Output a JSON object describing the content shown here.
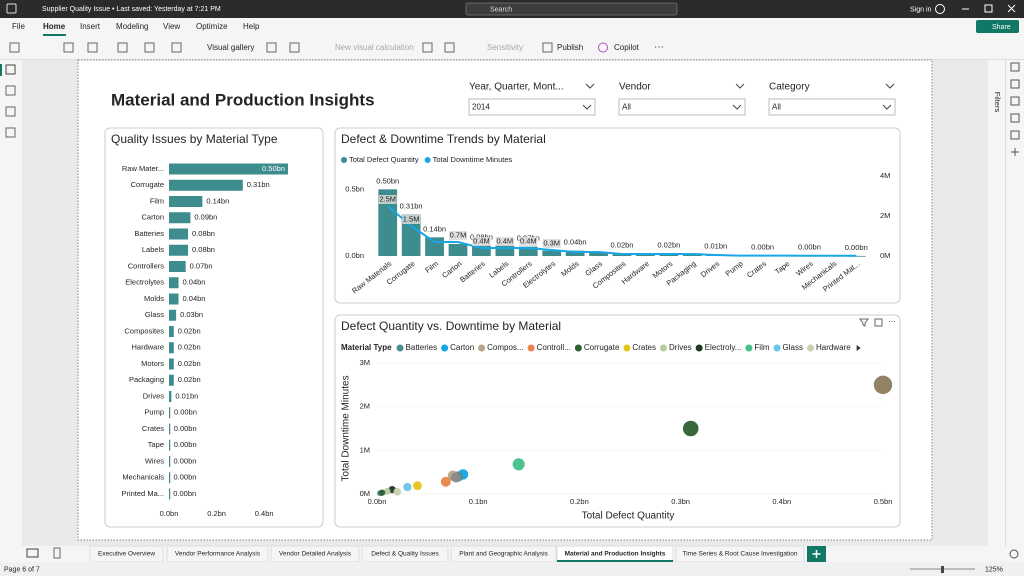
{
  "titlebar": {
    "document": "Supplier Quality Issue • Last saved: Yesterday at 7:21 PM",
    "search": "Search",
    "sign_in": "Sign in"
  },
  "menu": [
    "File",
    "Home",
    "Insert",
    "Modeling",
    "View",
    "Optimize",
    "Help"
  ],
  "active_menu": 1,
  "share": "Share",
  "ribbon": {
    "visual_gallery": "Visual gallery",
    "new_visual_calculation": "New visual calculation",
    "sensitivity": "Sensitivity",
    "publish": "Publish",
    "copilot": "Copilot"
  },
  "filters_pane": "Filters",
  "report_title": "Material and Production Insights",
  "slicers": [
    {
      "label": "Year, Quarter, Mont...",
      "value": "2014"
    },
    {
      "label": "Vendor",
      "value": "All"
    },
    {
      "label": "Category",
      "value": "All"
    }
  ],
  "chart_data": [
    {
      "type": "hbar",
      "title": "Quality Issues by Material Type",
      "categories": [
        "Raw Mater...",
        "Corrugate",
        "Film",
        "Carton",
        "Batteries",
        "Labels",
        "Controllers",
        "Electrolytes",
        "Molds",
        "Glass",
        "Composites",
        "Hardware",
        "Motors",
        "Packaging",
        "Drives",
        "Pump",
        "Crates",
        "Tape",
        "Wires",
        "Mechanicals",
        "Printed Ma..."
      ],
      "values": [
        0.5,
        0.31,
        0.14,
        0.09,
        0.08,
        0.08,
        0.07,
        0.04,
        0.04,
        0.03,
        0.02,
        0.02,
        0.02,
        0.02,
        0.01,
        0.004,
        0.003,
        0.003,
        0.002,
        0.002,
        0.001
      ],
      "value_labels": [
        "0.50bn",
        "0.31bn",
        "0.14bn",
        "0.09bn",
        "0.08bn",
        "0.08bn",
        "0.07bn",
        "0.04bn",
        "0.04bn",
        "0.03bn",
        "0.02bn",
        "0.02bn",
        "0.02bn",
        "0.02bn",
        "0.01bn",
        "0.00bn",
        "0.00bn",
        "0.00bn",
        "0.00bn",
        "0.00bn",
        "0.00bn"
      ],
      "color": "#3d8c8e",
      "xlim": [
        0,
        0.5
      ],
      "xticks": [
        {
          "value": 0,
          "label": "0.0bn"
        },
        {
          "value": 0.2,
          "label": "0.2bn"
        },
        {
          "value": 0.4,
          "label": "0.4bn"
        }
      ]
    },
    {
      "type": "combo",
      "title": "Defect & Downtime Trends by Material",
      "categories": [
        "Raw Materials",
        "Corrugate",
        "Film",
        "Carton",
        "Batteries",
        "Labels",
        "Controllers",
        "Electrolytes",
        "Molds",
        "Glass",
        "Composites",
        "Hardware",
        "Motors",
        "Packaging",
        "Drives",
        "Pump",
        "Crates",
        "Tape",
        "Wires",
        "Mechanicals",
        "Printed Mat..."
      ],
      "series": [
        {
          "name": "Total Defect Quantity",
          "color": "#3d8c8e",
          "kind": "bar",
          "values": [
            0.5,
            0.31,
            0.14,
            0.09,
            0.08,
            0.08,
            0.07,
            0.04,
            0.04,
            0.03,
            0.02,
            0.02,
            0.02,
            0.02,
            0.01,
            0.004,
            0.003,
            0.003,
            0.002,
            0.002,
            0.001
          ],
          "value_labels": [
            "0.50bn",
            "0.31bn",
            "0.14bn",
            null,
            "0.08bn",
            null,
            "0.07bn",
            null,
            "0.04bn",
            null,
            "0.02bn",
            null,
            "0.02bn",
            null,
            "0.01bn",
            null,
            "0.00bn",
            null,
            "0.00bn",
            null,
            "0.00bn"
          ]
        },
        {
          "name": "Total Downtime Minutes",
          "color": "#1aa7e8",
          "kind": "line",
          "axis": "y2",
          "values": [
            2.5,
            1.5,
            0.7,
            0.7,
            0.4,
            0.4,
            0.4,
            0.3,
            0.2,
            0.2,
            0.1,
            0.1,
            0.1,
            0.1,
            0.05,
            0.02,
            0.02,
            0.02,
            0.01,
            0.01,
            0.01
          ],
          "value_labels": [
            "2.5M",
            "1.5M",
            null,
            "0.7M",
            "0.4M",
            "0.4M",
            "0.4M",
            "0.3M",
            null,
            null,
            null,
            null,
            null,
            null,
            null,
            null,
            null,
            null,
            null,
            null,
            null
          ]
        }
      ],
      "ylim": [
        0,
        0.6
      ],
      "yticks": [
        {
          "value": 0,
          "label": "0.0bn"
        },
        {
          "value": 0.5,
          "label": "0.5bn"
        }
      ],
      "y2lim": [
        0,
        4
      ],
      "y2ticks": [
        {
          "value": 0,
          "label": "0M"
        },
        {
          "value": 2,
          "label": "2M"
        },
        {
          "value": 4,
          "label": "4M"
        }
      ]
    },
    {
      "type": "scatter",
      "title": "Defect Quantity vs. Downtime by Material",
      "legend_title": "Material Type",
      "legend": [
        {
          "name": "Batteries",
          "color": "#4a8f8f"
        },
        {
          "name": "Carton",
          "color": "#12a5e8"
        },
        {
          "name": "Compos...",
          "color": "#b8a48a"
        },
        {
          "name": "Controll...",
          "color": "#e8844a"
        },
        {
          "name": "Corrugate",
          "color": "#2e5f31"
        },
        {
          "name": "Crates",
          "color": "#e8c31a"
        },
        {
          "name": "Drives",
          "color": "#b9c9a0"
        },
        {
          "name": "Electroly...",
          "color": "#1e3a1e"
        },
        {
          "name": "Film",
          "color": "#43c08a"
        },
        {
          "name": "Glass",
          "color": "#6cc5e8"
        },
        {
          "name": "Hardware",
          "color": "#c8d0b0"
        }
      ],
      "points": {
        "x": [
          0.5,
          0.31,
          0.14,
          0.085,
          0.08,
          0.075,
          0.068,
          0.078,
          0.04,
          0.03,
          0.015,
          0.01,
          0.02,
          0.003,
          0.005
        ],
        "y": [
          2.5,
          1.5,
          0.68,
          0.45,
          0.4,
          0.42,
          0.28,
          0.38,
          0.19,
          0.16,
          0.1,
          0.06,
          0.05,
          0.02,
          0.03
        ],
        "colors": [
          "#8c7b5e",
          "#2e5f31",
          "#43c08a",
          "#12a5e8",
          "#4a8f8f",
          "#b8a48a",
          "#e8844a",
          "#8a8a8a",
          "#e8c31a",
          "#6cc5e8",
          "#1e3a1e",
          "#b9c9a0",
          "#c8d0b0",
          "#4a8f8f",
          "#2e5f31"
        ]
      },
      "xlabel": "Total Defect Quantity",
      "ylabel": "Total Downtime Minutes",
      "xlim": [
        0,
        0.5
      ],
      "xticks": [
        {
          "value": 0,
          "label": "0.0bn"
        },
        {
          "value": 0.1,
          "label": "0.1bn"
        },
        {
          "value": 0.2,
          "label": "0.2bn"
        },
        {
          "value": 0.3,
          "label": "0.3bn"
        },
        {
          "value": 0.4,
          "label": "0.4bn"
        },
        {
          "value": 0.5,
          "label": "0.5bn"
        }
      ],
      "ylim": [
        0,
        3
      ],
      "yticks": [
        {
          "value": 0,
          "label": "0M"
        },
        {
          "value": 1,
          "label": "1M"
        },
        {
          "value": 2,
          "label": "2M"
        },
        {
          "value": 3,
          "label": "3M"
        }
      ]
    }
  ],
  "tabs": [
    "Executive Overview",
    "Vendor Performance Analysis",
    "Vendor Detailed Analysis",
    "Defect & Quality Issues",
    "Plant and Geographic Analysis",
    "Material and Production Insights",
    "Time Series & Root Cause Investigation"
  ],
  "active_tab": 5,
  "status": {
    "page": "Page 6 of 7",
    "zoom": "125%"
  }
}
